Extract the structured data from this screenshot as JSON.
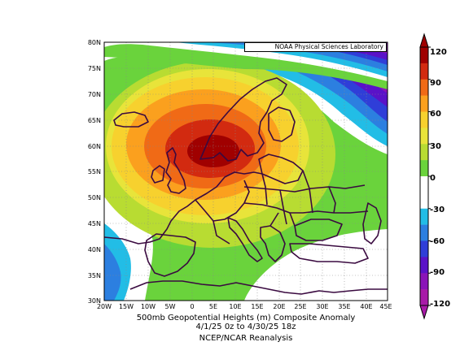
{
  "map": {
    "credit": "NOAA Physical Sciences Laboratory",
    "lat_labels": [
      "80N",
      "75N",
      "70N",
      "65N",
      "60N",
      "55N",
      "50N",
      "45N",
      "40N",
      "35N",
      "30N"
    ],
    "lon_labels": [
      "20W",
      "15W",
      "10W",
      "5W",
      "0",
      "5E",
      "10E",
      "15E",
      "20E",
      "25E",
      "30E",
      "35E",
      "40E",
      "45E"
    ]
  },
  "caption": {
    "line1": "500mb Geopotential Heights (m)     Composite Anomaly",
    "line2": "4/1/25 0z  to  4/30/25 18z",
    "line3": "NCEP/NCAR Reanalysis"
  },
  "colorbar": {
    "ticks": [
      "120",
      "90",
      "60",
      "30",
      "0",
      "-30",
      "-60",
      "-90",
      "-120"
    ],
    "colors": [
      "#a00000",
      "#d22a10",
      "#f06a16",
      "#fba01e",
      "#f7d12e",
      "#e8e43a",
      "#b8dc32",
      "#6ad33c",
      "#ffffff",
      "#ffffff",
      "#22bde6",
      "#2c7fe0",
      "#2f3ed8",
      "#5a12c8",
      "#8a14b8",
      "#a81aa8"
    ]
  },
  "chart_data": {
    "type": "heatmap",
    "title": "500mb Geopotential Heights (m)     Composite Anomaly",
    "subtitle": "4/1/25 0z  to  4/30/25 18z",
    "source": "NCEP/NCAR Reanalysis",
    "lon_range": [
      -20,
      45
    ],
    "lat_range": [
      30,
      80
    ],
    "value_range": [
      -120,
      120
    ],
    "anomaly_center": {
      "lon": 7,
      "lat": 59,
      "value": 110
    },
    "negative_regions": [
      {
        "area": "far north (Barents Sea)",
        "value": -90
      },
      {
        "area": "off Iberia (Atlantic)",
        "value": -45
      },
      {
        "area": "Eastern Mediterranean / Turkey",
        "value": 0
      }
    ]
  }
}
